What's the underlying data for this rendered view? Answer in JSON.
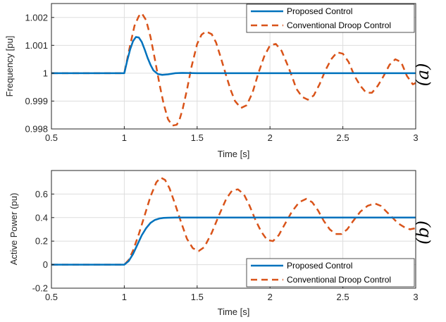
{
  "colors": {
    "proposed": "#0072BD",
    "conventional": "#D95319",
    "grid": "#dedede",
    "axis": "#262626"
  },
  "chart_data": [
    {
      "type": "line",
      "panel_label": "(a)",
      "xlabel": "Time [s]",
      "ylabel": "Frequency [pu]",
      "xlim": [
        0.5,
        3
      ],
      "ylim": [
        0.998,
        0.0025
      ],
      "ylim_values": [
        0.998,
        1.0025
      ],
      "xticks": [
        0.5,
        1,
        1.5,
        2,
        2.5,
        3
      ],
      "xtick_labels": [
        "0.5",
        "1",
        "1.5",
        "2",
        "2.5",
        "3"
      ],
      "yticks": [
        0.998,
        0.999,
        1,
        1.001,
        1.002
      ],
      "ytick_labels": [
        "0.998",
        "0.999",
        "1",
        "1.001",
        "1.002"
      ],
      "grid": true,
      "legend_position": "top-right",
      "series": [
        {
          "name": "Proposed Control",
          "style": "solid",
          "x": [
            0.5,
            1.0,
            1.02,
            1.04,
            1.06,
            1.08,
            1.1,
            1.12,
            1.14,
            1.16,
            1.18,
            1.2,
            1.23,
            1.26,
            1.3,
            1.35,
            1.4,
            1.5,
            3.0
          ],
          "y": [
            1.0,
            1.0,
            1.00045,
            1.00085,
            1.00115,
            1.0013,
            1.00128,
            1.00112,
            1.00085,
            1.00055,
            1.0003,
            1.0001,
            0.99997,
            0.99994,
            0.99996,
            1.0,
            1.00001,
            1.0,
            1.0
          ]
        },
        {
          "name": "Conventional Droop Control",
          "style": "dashed",
          "x": [
            0.5,
            1.0,
            1.02,
            1.04,
            1.07,
            1.1,
            1.12,
            1.15,
            1.18,
            1.21,
            1.24,
            1.27,
            1.3,
            1.33,
            1.36,
            1.38,
            1.4,
            1.43,
            1.46,
            1.5,
            1.53,
            1.56,
            1.6,
            1.63,
            1.66,
            1.7,
            1.73,
            1.76,
            1.8,
            1.84,
            1.88,
            1.92,
            1.96,
            2.0,
            2.04,
            2.08,
            2.12,
            2.15,
            2.18,
            2.22,
            2.26,
            2.3,
            2.34,
            2.38,
            2.42,
            2.46,
            2.5,
            2.54,
            2.58,
            2.62,
            2.66,
            2.7,
            2.74,
            2.78,
            2.82,
            2.86,
            2.9,
            2.94,
            2.98,
            3.0
          ],
          "y": [
            1.0,
            1.0,
            1.0005,
            1.001,
            1.0017,
            1.00205,
            1.00215,
            1.0019,
            1.0013,
            1.0005,
            0.99965,
            0.9989,
            0.99835,
            0.99812,
            0.99815,
            0.99835,
            0.9987,
            0.9994,
            1.0002,
            1.00105,
            1.00138,
            1.0015,
            1.0014,
            1.0011,
            1.0006,
            0.9999,
            0.9994,
            0.999,
            0.99875,
            0.99885,
            0.9993,
            1.0,
            1.0006,
            1.001,
            1.00105,
            1.0008,
            1.0003,
            0.9999,
            0.99945,
            0.99915,
            0.99905,
            0.9992,
            0.9996,
            1.0001,
            1.0005,
            1.00075,
            1.0007,
            1.0004,
            0.9999,
            0.99955,
            0.9993,
            0.9993,
            0.99955,
            0.9999,
            1.0003,
            1.0005,
            1.0004,
            0.9999,
            0.9996,
            0.99965
          ]
        }
      ]
    },
    {
      "type": "line",
      "panel_label": "(b)",
      "xlabel": "Time [s]",
      "ylabel": "Active Power (pu)",
      "xlim": [
        0.5,
        3
      ],
      "ylim_values": [
        -0.2,
        0.8
      ],
      "xticks": [
        0.5,
        1,
        1.5,
        2,
        2.5,
        3
      ],
      "xtick_labels": [
        "0.5",
        "1",
        "1.5",
        "2",
        "2.5",
        "3"
      ],
      "yticks": [
        -0.2,
        0,
        0.2,
        0.4,
        0.6
      ],
      "ytick_labels": [
        "-0.2",
        "0",
        "0.2",
        "0.4",
        "0.6"
      ],
      "grid": true,
      "legend_position": "bottom-right",
      "series": [
        {
          "name": "Proposed Control",
          "style": "solid",
          "x": [
            0.5,
            1.0,
            1.03,
            1.06,
            1.09,
            1.12,
            1.15,
            1.18,
            1.21,
            1.24,
            1.27,
            1.3,
            1.35,
            1.4,
            1.5,
            3.0
          ],
          "y": [
            0.0,
            0.0,
            0.03,
            0.09,
            0.17,
            0.25,
            0.31,
            0.355,
            0.38,
            0.392,
            0.397,
            0.399,
            0.4,
            0.4,
            0.4,
            0.4
          ]
        },
        {
          "name": "Conventional Droop Control",
          "style": "dashed",
          "x": [
            0.5,
            1.0,
            1.03,
            1.06,
            1.1,
            1.14,
            1.18,
            1.22,
            1.25,
            1.28,
            1.31,
            1.35,
            1.39,
            1.43,
            1.47,
            1.51,
            1.55,
            1.6,
            1.65,
            1.7,
            1.74,
            1.78,
            1.82,
            1.86,
            1.9,
            1.94,
            1.98,
            2.02,
            2.06,
            2.1,
            2.15,
            2.2,
            2.25,
            2.29,
            2.33,
            2.37,
            2.41,
            2.45,
            2.49,
            2.53,
            2.57,
            2.62,
            2.67,
            2.72,
            2.76,
            2.8,
            2.84,
            2.88,
            2.92,
            2.96,
            3.0
          ],
          "y": [
            0.0,
            0.0,
            0.04,
            0.12,
            0.26,
            0.42,
            0.58,
            0.7,
            0.74,
            0.72,
            0.65,
            0.51,
            0.36,
            0.22,
            0.14,
            0.115,
            0.15,
            0.27,
            0.42,
            0.56,
            0.63,
            0.64,
            0.6,
            0.5,
            0.38,
            0.28,
            0.21,
            0.2,
            0.25,
            0.34,
            0.45,
            0.53,
            0.56,
            0.53,
            0.46,
            0.37,
            0.3,
            0.26,
            0.26,
            0.3,
            0.37,
            0.45,
            0.5,
            0.52,
            0.5,
            0.45,
            0.4,
            0.35,
            0.32,
            0.3,
            0.31
          ]
        }
      ]
    }
  ]
}
